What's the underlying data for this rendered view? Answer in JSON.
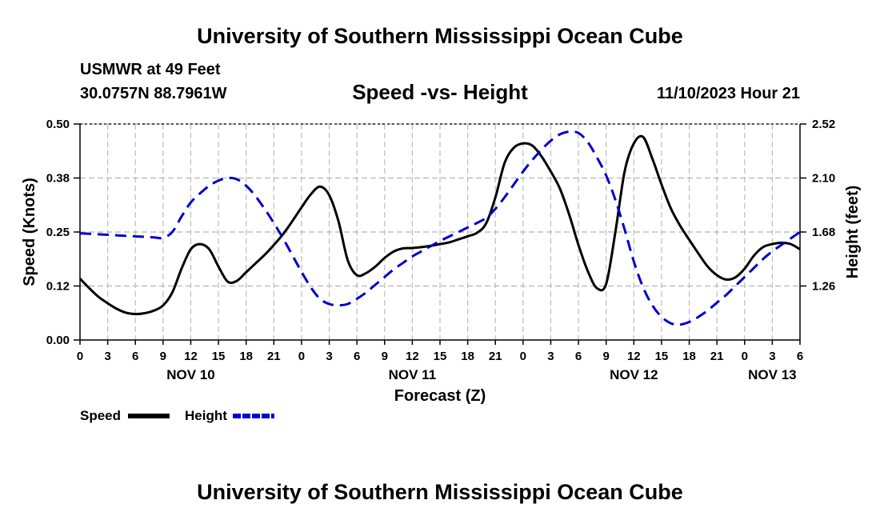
{
  "chart_data": {
    "type": "line",
    "title": "University of Southern Mississippi Ocean Cube",
    "footer_title": "University of Southern Mississippi Ocean Cube",
    "station": "USMWR at 49 Feet",
    "location": "30.0757N  88.7961W",
    "subtitle": "Speed -vs- Height",
    "timestamp": "11/10/2023 Hour 21",
    "xlabel": "Forecast (Z)",
    "ylabel_left": "Speed (Knots)",
    "ylabel_right": "Height (feet)",
    "x_unit": "hours since NOV 10 00Z",
    "xlim": [
      0,
      78
    ],
    "ylim_left": [
      0,
      0.5
    ],
    "ylim_right": [
      0.84,
      2.52
    ],
    "left_ticks": [
      {
        "value": 0.0,
        "label": "0.00"
      },
      {
        "value": 0.125,
        "label": "0.12"
      },
      {
        "value": 0.25,
        "label": "0.25"
      },
      {
        "value": 0.375,
        "label": "0.38"
      },
      {
        "value": 0.5,
        "label": "0.50"
      }
    ],
    "right_ticks": [
      {
        "value": 1.26,
        "label": "1.26"
      },
      {
        "value": 1.68,
        "label": "1.68"
      },
      {
        "value": 2.1,
        "label": "2.10"
      },
      {
        "value": 2.52,
        "label": "2.52"
      }
    ],
    "x_ticks": [
      {
        "value": 0,
        "label": "0"
      },
      {
        "value": 3,
        "label": "3"
      },
      {
        "value": 6,
        "label": "6"
      },
      {
        "value": 9,
        "label": "9"
      },
      {
        "value": 12,
        "label": "12"
      },
      {
        "value": 15,
        "label": "15"
      },
      {
        "value": 18,
        "label": "18"
      },
      {
        "value": 21,
        "label": "21"
      },
      {
        "value": 24,
        "label": "0"
      },
      {
        "value": 27,
        "label": "3"
      },
      {
        "value": 30,
        "label": "6"
      },
      {
        "value": 33,
        "label": "9"
      },
      {
        "value": 36,
        "label": "12"
      },
      {
        "value": 39,
        "label": "15"
      },
      {
        "value": 42,
        "label": "18"
      },
      {
        "value": 45,
        "label": "21"
      },
      {
        "value": 48,
        "label": "0"
      },
      {
        "value": 51,
        "label": "3"
      },
      {
        "value": 54,
        "label": "6"
      },
      {
        "value": 57,
        "label": "9"
      },
      {
        "value": 60,
        "label": "12"
      },
      {
        "value": 63,
        "label": "15"
      },
      {
        "value": 66,
        "label": "18"
      },
      {
        "value": 69,
        "label": "21"
      },
      {
        "value": 72,
        "label": "0"
      },
      {
        "value": 75,
        "label": "3"
      },
      {
        "value": 78,
        "label": "6"
      }
    ],
    "day_labels": [
      {
        "value": 12,
        "label": "NOV 10"
      },
      {
        "value": 36,
        "label": "NOV 11"
      },
      {
        "value": 60,
        "label": "NOV 12"
      },
      {
        "value": 75,
        "label": "NOV 13"
      }
    ],
    "grid": true,
    "legend": [
      {
        "name": "Speed",
        "color": "#000000",
        "style": "solid"
      },
      {
        "name": "Height",
        "color": "#0000cc",
        "style": "dashed"
      }
    ],
    "series": [
      {
        "name": "Speed",
        "axis": "left",
        "color": "#000000",
        "style": "solid",
        "x": [
          0,
          1,
          2,
          3,
          4,
          5,
          6,
          7,
          8,
          9,
          10,
          11,
          12,
          13,
          14,
          15,
          16,
          17,
          18,
          19,
          20,
          21,
          22,
          23,
          24,
          25,
          26,
          27,
          28,
          29,
          30,
          31,
          32,
          33,
          34,
          35,
          36,
          37,
          38,
          39,
          40,
          41,
          42,
          43,
          44,
          45,
          46,
          47,
          48,
          49,
          50,
          51,
          52,
          53,
          54,
          55,
          56,
          57,
          58,
          59,
          60,
          61,
          62,
          63,
          64,
          65,
          66,
          67,
          68,
          69,
          70,
          71,
          72,
          73,
          74,
          75,
          76,
          77,
          78
        ],
        "values": [
          0.142,
          0.12,
          0.1,
          0.085,
          0.072,
          0.063,
          0.06,
          0.062,
          0.068,
          0.08,
          0.11,
          0.165,
          0.21,
          0.222,
          0.21,
          0.17,
          0.135,
          0.137,
          0.157,
          0.177,
          0.197,
          0.22,
          0.245,
          0.275,
          0.307,
          0.337,
          0.355,
          0.335,
          0.275,
          0.185,
          0.15,
          0.155,
          0.17,
          0.19,
          0.205,
          0.212,
          0.213,
          0.215,
          0.218,
          0.222,
          0.226,
          0.233,
          0.24,
          0.248,
          0.27,
          0.33,
          0.41,
          0.445,
          0.455,
          0.45,
          0.425,
          0.39,
          0.35,
          0.29,
          0.22,
          0.16,
          0.12,
          0.13,
          0.25,
          0.39,
          0.455,
          0.47,
          0.42,
          0.36,
          0.305,
          0.265,
          0.232,
          0.2,
          0.17,
          0.15,
          0.14,
          0.145,
          0.165,
          0.195,
          0.215,
          0.222,
          0.225,
          0.222,
          0.21
        ]
      },
      {
        "name": "Height",
        "axis": "right",
        "color": "#0000cc",
        "style": "dashed",
        "x": [
          0,
          1,
          2,
          3,
          4,
          5,
          6,
          7,
          8,
          9,
          10,
          11,
          12,
          13,
          14,
          15,
          16,
          17,
          18,
          19,
          20,
          21,
          22,
          23,
          24,
          25,
          26,
          27,
          28,
          29,
          30,
          31,
          32,
          33,
          34,
          35,
          36,
          37,
          38,
          39,
          40,
          41,
          42,
          43,
          44,
          45,
          46,
          47,
          48,
          49,
          50,
          51,
          52,
          53,
          54,
          55,
          56,
          57,
          58,
          59,
          60,
          61,
          62,
          63,
          64,
          65,
          66,
          67,
          68,
          69,
          70,
          71,
          72,
          73,
          74,
          75,
          76,
          77,
          78
        ],
        "values": [
          1.67,
          1.666,
          1.662,
          1.658,
          1.654,
          1.65,
          1.646,
          1.642,
          1.638,
          1.634,
          1.68,
          1.8,
          1.91,
          1.98,
          2.04,
          2.08,
          2.1,
          2.09,
          2.04,
          1.96,
          1.86,
          1.75,
          1.63,
          1.5,
          1.37,
          1.25,
          1.16,
          1.12,
          1.11,
          1.12,
          1.16,
          1.21,
          1.27,
          1.33,
          1.39,
          1.44,
          1.49,
          1.53,
          1.57,
          1.61,
          1.645,
          1.68,
          1.715,
          1.75,
          1.79,
          1.86,
          1.95,
          2.05,
          2.15,
          2.24,
          2.32,
          2.39,
          2.44,
          2.46,
          2.45,
          2.38,
          2.26,
          2.12,
          1.93,
          1.7,
          1.45,
          1.25,
          1.11,
          1.02,
          0.97,
          0.96,
          0.98,
          1.02,
          1.07,
          1.13,
          1.19,
          1.26,
          1.33,
          1.4,
          1.47,
          1.53,
          1.58,
          1.63,
          1.68
        ]
      }
    ]
  }
}
